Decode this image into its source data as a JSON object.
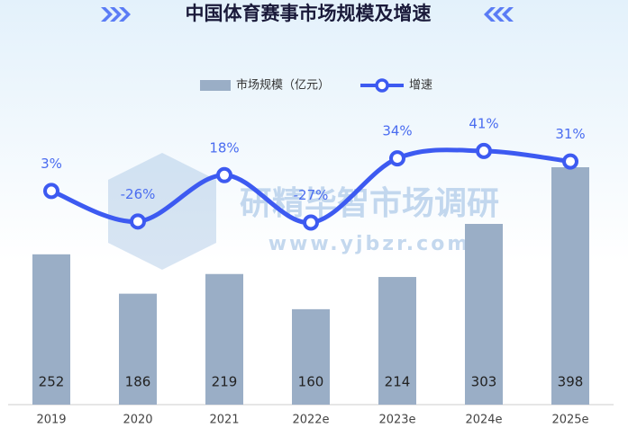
{
  "chart_data": {
    "type": "bar",
    "title": "中国体育赛事市场规模及增速",
    "watermark": [
      "研精毕智市场调研",
      "www.yjbzr.com"
    ],
    "categories": [
      "2019",
      "2020",
      "2021",
      "2022e",
      "2023e",
      "2024e",
      "2025e"
    ],
    "series": [
      {
        "name": "市场规模（亿元）",
        "type": "bar",
        "color": "#9aaec6",
        "values": [
          252,
          186,
          219,
          160,
          214,
          303,
          398
        ]
      },
      {
        "name": "增速",
        "type": "line",
        "axis": "y2",
        "color": "#3d5af1",
        "values": [
          3,
          -26,
          18,
          -27,
          34,
          41,
          31
        ],
        "value_labels": [
          "3%",
          "-26%",
          "18%",
          "-27%",
          "34%",
          "41%",
          "31%"
        ]
      }
    ],
    "ylim": [
      0,
      600
    ],
    "y2lim": [
      -200,
      140
    ],
    "legend": "top"
  }
}
